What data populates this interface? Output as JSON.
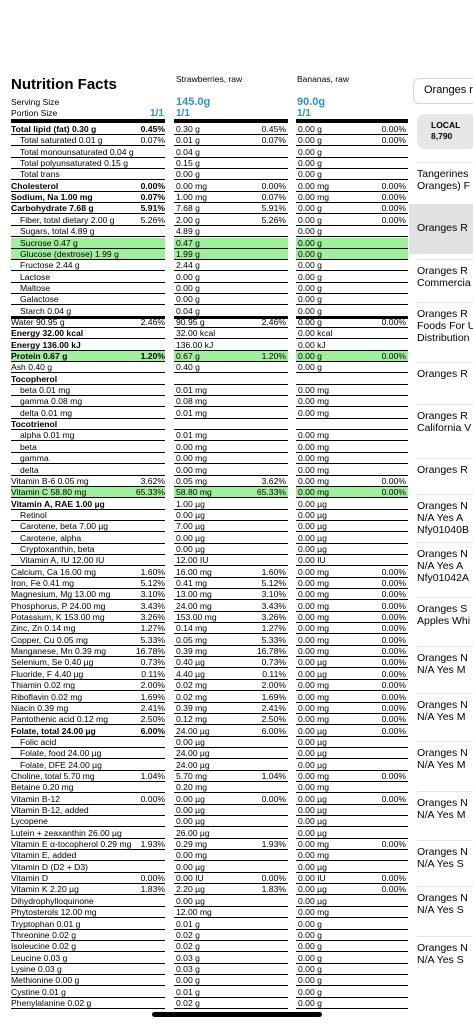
{
  "nutrition": {
    "title": "Nutrition Facts",
    "serving_label": "Serving Size",
    "portion_label": "Portion Size",
    "serving_base": "1/1",
    "columns": [
      {
        "name": "Strawberries, raw",
        "weight": "145.0g",
        "portion": "1/1"
      },
      {
        "name": "Bananas, raw",
        "weight": "90.0g",
        "portion": "1/1"
      }
    ]
  },
  "rows": [
    {
      "label": "Total lipid (fat) 0.30 g",
      "pct": "0.45%",
      "bold": true,
      "v1": "0.30 g",
      "p1": "0.45%",
      "v2": "0.00 g",
      "p2": "0.00%"
    },
    {
      "label": "Total saturated 0.01 g",
      "indent": 1,
      "pct": "0.07%",
      "v1": "0.01 g",
      "p1": "0.07%",
      "v2": "0.00 g",
      "p2": "0.00%"
    },
    {
      "label": "Total monounsaturated 0.04 g",
      "indent": 1,
      "v1": "0.04 g",
      "v2": "0.00 g"
    },
    {
      "label": "Total polyunsaturated 0.15 g",
      "indent": 1,
      "v1": "0.15 g",
      "v2": "0.00 g"
    },
    {
      "label": "Total trans",
      "indent": 1,
      "v1": "0.00 g",
      "v2": "0.00 g"
    },
    {
      "label": "Cholesterol",
      "pct": "0.00%",
      "bold": true,
      "v1": "0.00 mg",
      "p1": "0.00%",
      "v2": "0.00 mg",
      "p2": "0.00%"
    },
    {
      "label": "Sodium, Na 1.00 mg",
      "pct": "0.07%",
      "bold": true,
      "v1": "1.00 mg",
      "p1": "0.07%",
      "v2": "0.00 mg",
      "p2": "0.00%"
    },
    {
      "label": "Carbohydrate 7.68 g",
      "pct": "5.91%",
      "bold": true,
      "v1": "7.68 g",
      "p1": "5.91%",
      "v2": "0.00 g",
      "p2": "0.00%"
    },
    {
      "label": "Fiber, total dietary 2.00 g",
      "indent": 1,
      "pct": "5.26%",
      "v1": "2.00 g",
      "p1": "5.26%",
      "v2": "0.00 g",
      "p2": "0.00%"
    },
    {
      "label": "Sugars, total 4.89 g",
      "indent": 1,
      "v1": "4.89 g",
      "v2": "0.00 g"
    },
    {
      "label": "Sucrose 0.47 g",
      "indent": 1,
      "hl": true,
      "v1": "0.47 g",
      "v2": "0.00 g"
    },
    {
      "label": "Glucose (dextrose) 1.99 g",
      "indent": 1,
      "hl": true,
      "v1": "1.99 g",
      "v2": "0.00 g"
    },
    {
      "label": "Fructose 2.44 g",
      "indent": 1,
      "v1": "2.44 g",
      "v2": "0.00 g"
    },
    {
      "label": "Lactose",
      "indent": 1,
      "v1": "0.00 g",
      "v2": "0.00 g"
    },
    {
      "label": "Maltose",
      "indent": 1,
      "v1": "0.00 g",
      "v2": "0.00 g"
    },
    {
      "label": "Galactose",
      "indent": 1,
      "v1": "0.00 g",
      "v2": "0.00 g"
    },
    {
      "label": "Starch 0.04 g",
      "indent": 1,
      "v1": "0.04 g",
      "v2": "0.00 g",
      "thick": true
    },
    {
      "label": "Water 90.95 g",
      "pct": "2.46%",
      "v1": "90.95 g",
      "p1": "2.46%",
      "v2": "0.00 g",
      "p2": "0.00%"
    },
    {
      "label": "Energy 32.00 kcal",
      "bold": true,
      "v1": "32.00 kcal",
      "v2": "0.00 kcal"
    },
    {
      "label": "Energy 136.00 kJ",
      "bold": true,
      "v1": "136.00 kJ",
      "v2": "0.00 kJ"
    },
    {
      "label": "Protein 0.67 g",
      "pct": "1.20%",
      "bold": true,
      "hl": true,
      "v1": "0.67 g",
      "p1": "1.20%",
      "v2": "0.00 g",
      "p2": "0.00%"
    },
    {
      "label": "Ash 0.40 g",
      "v1": "0.40 g",
      "v2": "0.00 g"
    },
    {
      "label": "Tocopherol",
      "bold": true
    },
    {
      "label": "beta 0.01 mg",
      "indent": 1,
      "v1": "0.01 mg",
      "v2": "0.00 mg"
    },
    {
      "label": "gamma 0.08 mg",
      "indent": 1,
      "v1": "0.08 mg",
      "v2": "0.00 mg"
    },
    {
      "label": "delta 0.01 mg",
      "indent": 1,
      "v1": "0.01 mg",
      "v2": "0.00 mg"
    },
    {
      "label": "Tocotrienol",
      "bold": true
    },
    {
      "label": "alpha 0.01 mg",
      "indent": 1,
      "v1": "0.01 mg",
      "v2": "0.00 mg"
    },
    {
      "label": "beta",
      "indent": 1,
      "v1": "0.00 mg",
      "v2": "0.00 mg"
    },
    {
      "label": "gamma",
      "indent": 1,
      "v1": "0.00 mg",
      "v2": "0.00 mg"
    },
    {
      "label": "delta",
      "indent": 1,
      "v1": "0.00 mg",
      "v2": "0.00 mg"
    },
    {
      "label": "Vitamin B-6 0.05 mg",
      "pct": "3.62%",
      "v1": "0.05 mg",
      "p1": "3.62%",
      "v2": "0.00 mg",
      "p2": "0.00%"
    },
    {
      "label": "Vitamin C 58.80 mg",
      "pct": "65.33%",
      "hl": true,
      "v1": "58.80 mg",
      "p1": "65.33%",
      "v2": "0.00 mg",
      "p2": "0.00%"
    },
    {
      "label": "Vitamin A, RAE 1.00 µg",
      "bold": true,
      "v1": "1.00 µg",
      "v2": "0.00 µg"
    },
    {
      "label": "Retinol",
      "indent": 1,
      "v1": "0.00 µg",
      "v2": "0.00 µg"
    },
    {
      "label": "Carotene, beta 7.00 µg",
      "indent": 1,
      "v1": "7.00 µg",
      "v2": "0.00 µg"
    },
    {
      "label": "Carotene, alpha",
      "indent": 1,
      "v1": "0.00 µg",
      "v2": "0.00 µg"
    },
    {
      "label": "Cryptoxanthin, beta",
      "indent": 1,
      "v1": "0.00 µg",
      "v2": "0.00 µg"
    },
    {
      "label": "Vitamin A, IU 12.00 IU",
      "indent": 1,
      "v1": "12.00 IU",
      "v2": "0.00 IU"
    },
    {
      "label": "Calcium, Ca 16.00 mg",
      "pct": "1.60%",
      "v1": "16.00 mg",
      "p1": "1.60%",
      "v2": "0.00 mg",
      "p2": "0.00%"
    },
    {
      "label": "Iron, Fe 0.41 mg",
      "pct": "5.12%",
      "v1": "0.41 mg",
      "p1": "5.12%",
      "v2": "0.00 mg",
      "p2": "0.00%"
    },
    {
      "label": "Magnesium, Mg 13.00 mg",
      "pct": "3.10%",
      "v1": "13.00 mg",
      "p1": "3.10%",
      "v2": "0.00 mg",
      "p2": "0.00%"
    },
    {
      "label": "Phosphorus, P 24.00 mg",
      "pct": "3.43%",
      "v1": "24.00 mg",
      "p1": "3.43%",
      "v2": "0.00 mg",
      "p2": "0.00%"
    },
    {
      "label": "Potassium, K 153.00 mg",
      "pct": "3.26%",
      "v1": "153.00 mg",
      "p1": "3.26%",
      "v2": "0.00 mg",
      "p2": "0.00%"
    },
    {
      "label": "Zinc, Zn 0.14 mg",
      "pct": "1.27%",
      "v1": "0.14 mg",
      "p1": "1.27%",
      "v2": "0.00 mg",
      "p2": "0.00%"
    },
    {
      "label": "Copper, Cu 0.05 mg",
      "pct": "5.33%",
      "v1": "0.05 mg",
      "p1": "5.33%",
      "v2": "0.00 mg",
      "p2": "0.00%"
    },
    {
      "label": "Manganese, Mn 0.39 mg",
      "pct": "16.78%",
      "v1": "0.39 mg",
      "p1": "16.78%",
      "v2": "0.00 mg",
      "p2": "0.00%"
    },
    {
      "label": "Selenium, Se 0.40 µg",
      "pct": "0.73%",
      "v1": "0.40 µg",
      "p1": "0.73%",
      "v2": "0.00 µg",
      "p2": "0.00%"
    },
    {
      "label": "Fluoride, F 4.40 µg",
      "pct": "0.11%",
      "v1": "4.40 µg",
      "p1": "0.11%",
      "v2": "0.00 µg",
      "p2": "0.00%"
    },
    {
      "label": "Thiamin 0.02 mg",
      "pct": "2.00%",
      "v1": "0.02 mg",
      "p1": "2.00%",
      "v2": "0.00 mg",
      "p2": "0.00%"
    },
    {
      "label": "Riboflavin 0.02 mg",
      "pct": "1.69%",
      "v1": "0.02 mg",
      "p1": "1.69%",
      "v2": "0.00 mg",
      "p2": "0.00%"
    },
    {
      "label": "Niacin 0.39 mg",
      "pct": "2.41%",
      "v1": "0.39 mg",
      "p1": "2.41%",
      "v2": "0.00 mg",
      "p2": "0.00%"
    },
    {
      "label": "Pantothenic acid 0.12 mg",
      "pct": "2.50%",
      "v1": "0.12 mg",
      "p1": "2.50%",
      "v2": "0.00 mg",
      "p2": "0.00%"
    },
    {
      "label": "Folate, total 24.00 µg",
      "pct": "6.00%",
      "bold": true,
      "v1": "24.00 µg",
      "p1": "6.00%",
      "v2": "0.00 µg",
      "p2": "0.00%"
    },
    {
      "label": "Folic acid",
      "indent": 1,
      "v1": "0.00 µg",
      "v2": "0.00 µg"
    },
    {
      "label": "Folate, food 24.00 µg",
      "indent": 1,
      "v1": "24.00 µg",
      "v2": "0.00 µg"
    },
    {
      "label": "Folate, DFE 24.00 µg",
      "indent": 1,
      "v1": "24.00 µg",
      "v2": "0.00 µg"
    },
    {
      "label": "Choline, total 5.70 mg",
      "pct": "1.04%",
      "v1": "5.70 mg",
      "p1": "1.04%",
      "v2": "0.00 mg",
      "p2": "0.00%"
    },
    {
      "label": "Betaine 0.20 mg",
      "v1": "0.20 mg",
      "v2": "0.00 mg"
    },
    {
      "label": "Vitamin B-12",
      "pct": "0.00%",
      "v1": "0.00 µg",
      "p1": "0.00%",
      "v2": "0.00 µg",
      "p2": "0.00%"
    },
    {
      "label": "Vitamin B-12, added",
      "v1": "0.00 µg",
      "v2": "0.00 µg"
    },
    {
      "label": "Lycopene",
      "v1": "0.00 µg",
      "v2": "0.00 µg"
    },
    {
      "label": "Lutein + zeaxanthin 26.00 µg",
      "v1": "26.00 µg",
      "v2": "0.00 µg"
    },
    {
      "label": "Vitamin E α-tocopherol 0.29 mg",
      "pct": "1.93%",
      "v1": "0.29 mg",
      "p1": "1.93%",
      "v2": "0.00 mg",
      "p2": "0.00%"
    },
    {
      "label": "Vitamin E, added",
      "v1": "0.00 mg",
      "v2": "0.00 mg"
    },
    {
      "label": "Vitamin D (D2 + D3)",
      "v1": "0.00 µg",
      "v2": "0.00 µg"
    },
    {
      "label": "Vitamin D",
      "pct": "0.00%",
      "v1": "0.00 IU",
      "p1": "0.00%",
      "v2": "0.00 IU",
      "p2": "0.00%"
    },
    {
      "label": "Vitamin K 2.20 µg",
      "pct": "1.83%",
      "v1": "2.20 µg",
      "p1": "1.83%",
      "v2": "0.00 µg",
      "p2": "0.00%"
    },
    {
      "label": "Dihydrophylloquinone",
      "v1": "0.00 µg",
      "v2": "0.00 µg"
    },
    {
      "label": "Phytosterols 12.00 mg",
      "v1": "12.00 mg",
      "v2": "0.00 mg"
    },
    {
      "label": "Tryptophan 0.01 g",
      "v1": "0.01 g",
      "v2": "0.00 g"
    },
    {
      "label": "Threonine 0.02 g",
      "v1": "0.02 g",
      "v2": "0.00 g"
    },
    {
      "label": "Isoleucine 0.02 g",
      "v1": "0.02 g",
      "v2": "0.00 g"
    },
    {
      "label": "Leucine 0.03 g",
      "v1": "0.03 g",
      "v2": "0.00 g"
    },
    {
      "label": "Lysine 0.03 g",
      "v1": "0.03 g",
      "v2": "0.00 g"
    },
    {
      "label": "Methionine 0.00 g",
      "v1": "0.00 g",
      "v2": "0.00 g"
    },
    {
      "label": "Cystine 0.01 g",
      "v1": "0.01 g",
      "v2": "0.00 g"
    },
    {
      "label": "Phenylalanine 0.02 g",
      "v1": "0.02 g",
      "v2": "0.00 g"
    }
  ],
  "sidebar": {
    "search_text": "Oranges r",
    "source_badge": {
      "name": "LOCAL",
      "count": "8,790"
    },
    "items": [
      {
        "l1": "Tangerines",
        "l2": "Oranges) F"
      },
      {
        "l1": "Oranges  R",
        "selected": true
      },
      {
        "l1": "Oranges  R",
        "l2": "Commercia"
      },
      {
        "l1": "Oranges  R",
        "l2": "Foods For U",
        "l3": "Distribution"
      },
      {
        "l1": "Oranges  R"
      },
      {
        "l1": "Oranges  R",
        "l2": "California  V"
      },
      {
        "l1": "Oranges  R"
      },
      {
        "l1": "Oranges  N",
        "l2": "N/A  Yes  A",
        "l3": "Nfy01040B"
      },
      {
        "l1": "Oranges  N",
        "l2": "N/A  Yes  A",
        "l3": "Nfy01042A"
      },
      {
        "l1": "Oranges  S",
        "l2": "Apples Whi"
      },
      {
        "l1": "Oranges  N",
        "l2": "N/A  Yes  M"
      },
      {
        "l1": "Oranges  N",
        "l2": "N/A  Yes  M"
      },
      {
        "l1": "Oranges  N",
        "l2": "N/A  Yes  M"
      },
      {
        "l1": "Oranges  N",
        "l2": "N/A  Yes  M"
      },
      {
        "l1": "Oranges  N",
        "l2": "N/A  Yes  S"
      },
      {
        "l1": "Oranges  N",
        "l2": "N/A  Yes  S"
      },
      {
        "l1": "Oranges  N",
        "l2": "N/A  Yes  S"
      }
    ]
  },
  "colors": {
    "highlight": "#9ff09a",
    "accent": "#2a8fe0"
  }
}
